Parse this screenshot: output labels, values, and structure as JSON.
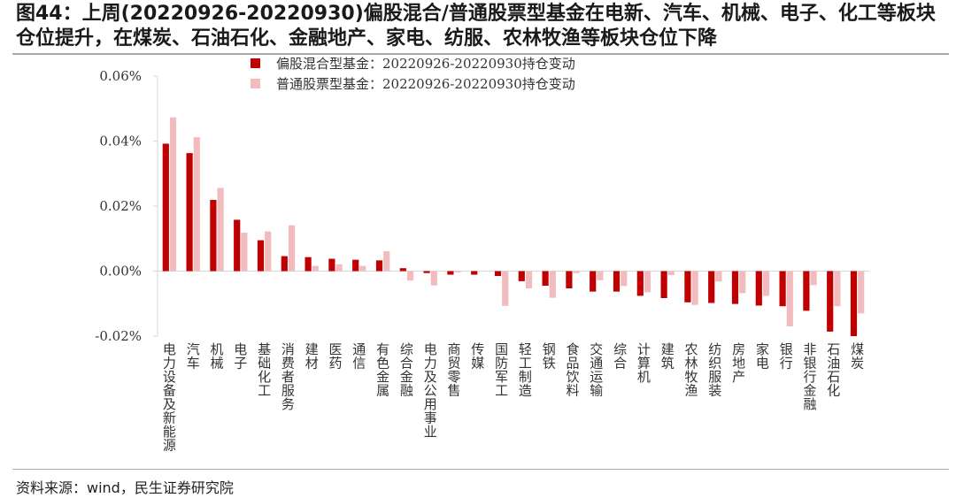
{
  "header": {
    "title": "图44：上周(20220926-20220930)偏股混合/普通股票型基金在电新、汽车、机械、电子、化工等板块仓位提升，在煤炭、石油石化、金融地产、家电、纺服、农林牧渔等板块仓位下降"
  },
  "footer": {
    "source": "资料来源：wind，民生证券研究院"
  },
  "colors": {
    "series1": "#c00000",
    "series2": "#f2bcbe",
    "axis": "#d9d9d9"
  },
  "chart_data": {
    "type": "bar",
    "title": "",
    "xlabel": "",
    "ylabel": "",
    "ylim": [
      -0.02,
      0.06
    ],
    "yticks": [
      0.06,
      0.04,
      0.02,
      0.0,
      -0.02
    ],
    "ytick_labels": [
      "0.06%",
      "0.04%",
      "0.02%",
      "0.00%",
      "-0.02%"
    ],
    "legend_position": "top-left",
    "categories": [
      "电力设备及新能源",
      "汽车",
      "机械",
      "电子",
      "基础化工",
      "消费者服务",
      "建材",
      "医药",
      "通信",
      "有色金属",
      "综合金融",
      "电力及公用事业",
      "商贸零售",
      "传媒",
      "国防军工",
      "轻工制造",
      "钢铁",
      "食品饮料",
      "交通运输",
      "综合",
      "计算机",
      "建筑",
      "农林牧渔",
      "纺织服装",
      "房地产",
      "家电",
      "银行",
      "非银行金融",
      "石油石化",
      "煤炭"
    ],
    "series": [
      {
        "name": "偏股混合型基金：20220926-20220930持仓变动",
        "values": [
          0.0392,
          0.0363,
          0.0219,
          0.0158,
          0.0095,
          0.0046,
          0.0043,
          0.0038,
          0.0035,
          0.0033,
          0.0009,
          -0.0006,
          -0.0011,
          -0.0011,
          -0.0015,
          -0.0031,
          -0.0045,
          -0.0053,
          -0.0063,
          -0.0063,
          -0.0076,
          -0.0083,
          -0.0096,
          -0.0098,
          -0.0101,
          -0.0106,
          -0.0108,
          -0.0122,
          -0.0186,
          -0.02
        ]
      },
      {
        "name": "普通股票型基金：20220926-20220930持仓变动",
        "values": [
          0.0473,
          0.0412,
          0.0256,
          0.0118,
          0.0122,
          0.0141,
          0.0016,
          0.0021,
          0.0016,
          0.0061,
          -0.0029,
          -0.0044,
          -0.0004,
          0.0,
          -0.0107,
          -0.0053,
          -0.0082,
          -0.0006,
          -0.0028,
          -0.0046,
          -0.0065,
          -0.0012,
          -0.0104,
          -0.0032,
          -0.0068,
          -0.0076,
          -0.017,
          -0.0043,
          -0.0108,
          -0.013
        ]
      }
    ]
  }
}
